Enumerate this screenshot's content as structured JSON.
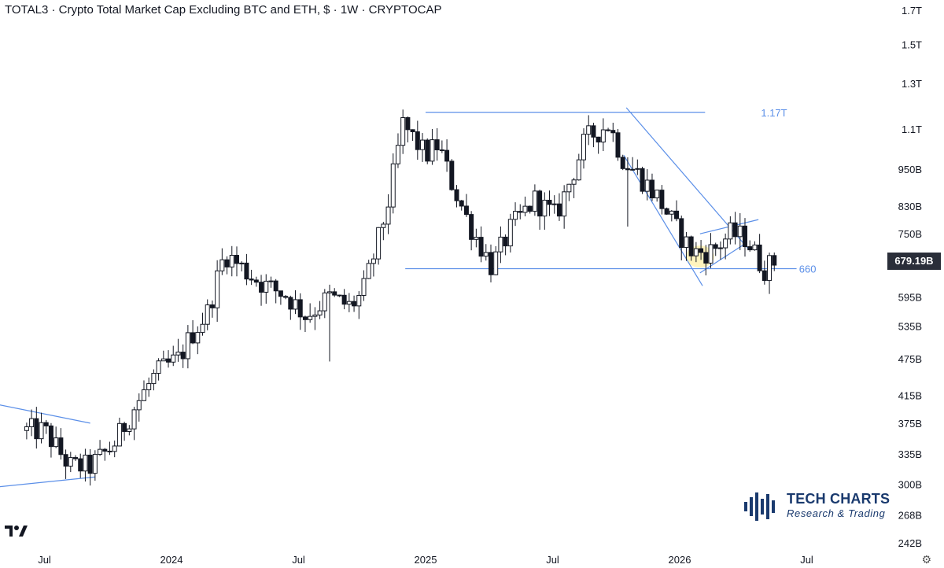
{
  "title": "TOTAL3 · Crypto Total Market Cap Excluding BTC and ETH, $ · 1W · CRYPTOCAP",
  "current_price_label": "679.19B",
  "brand": {
    "name": "TECH CHARTS",
    "tagline": "Research & Trading"
  },
  "logo_text": "17",
  "colors": {
    "bg": "#ffffff",
    "candle": "#131722",
    "trendline": "#5b8fe8",
    "highlight": "#fff2b3",
    "label_bg": "#2a2e39"
  },
  "chart_data": {
    "type": "candlestick",
    "title": "TOTAL3 · Crypto Total Market Cap Excluding BTC and ETH, $ · 1W · CRYPTOCAP",
    "y_scale": "log",
    "ylim": [
      230,
      1750
    ],
    "x_axis_labels": [
      "Jul",
      "2024",
      "Jul",
      "2025",
      "Jul",
      "2026",
      "Jul"
    ],
    "y_tick_labels": [
      "1.7T",
      "1.5T",
      "1.3T",
      "1.1T",
      "950B",
      "830B",
      "750B",
      "595B",
      "535B",
      "475B",
      "415B",
      "375B",
      "335B",
      "300B",
      "268B",
      "242B"
    ],
    "y_tick_values": [
      1700,
      1500,
      1300,
      1100,
      950,
      830,
      750,
      595,
      535,
      475,
      415,
      375,
      335,
      300,
      268,
      242
    ],
    "current_price": 679.19,
    "annotations": [
      {
        "text": "1.17T",
        "value": 1170
      },
      {
        "text": "660",
        "value": 660
      }
    ],
    "close_path": [
      [
        2023.5,
        365
      ],
      [
        2023.6,
        320
      ],
      [
        2023.68,
        320
      ],
      [
        2023.77,
        345
      ],
      [
        2023.85,
        395
      ],
      [
        2023.94,
        450
      ],
      [
        2024.03,
        475
      ],
      [
        2024.08,
        520
      ],
      [
        2024.14,
        560
      ],
      [
        2024.21,
        700
      ],
      [
        2024.3,
        650
      ],
      [
        2024.37,
        620
      ],
      [
        2024.45,
        600
      ],
      [
        2024.53,
        555
      ],
      [
        2024.62,
        595
      ],
      [
        2024.7,
        575
      ],
      [
        2024.75,
        600
      ],
      [
        2024.8,
        700
      ],
      [
        2024.85,
        830
      ],
      [
        2024.91,
        1120
      ],
      [
        2025.0,
        1000
      ],
      [
        2025.05,
        1040
      ],
      [
        2025.1,
        910
      ],
      [
        2025.17,
        780
      ],
      [
        2025.26,
        665
      ],
      [
        2025.34,
        770
      ],
      [
        2025.43,
        850
      ],
      [
        2025.51,
        800
      ],
      [
        2025.55,
        870
      ],
      [
        2025.63,
        1060
      ],
      [
        2025.72,
        1120
      ],
      [
        2025.78,
        980
      ],
      [
        2025.84,
        930
      ],
      [
        2025.92,
        850
      ],
      [
        2025.99,
        760
      ],
      [
        2026.05,
        700
      ],
      [
        2026.13,
        705
      ],
      [
        2026.2,
        750
      ],
      [
        2026.26,
        740
      ],
      [
        2026.33,
        660
      ],
      [
        2026.38,
        679
      ]
    ]
  }
}
